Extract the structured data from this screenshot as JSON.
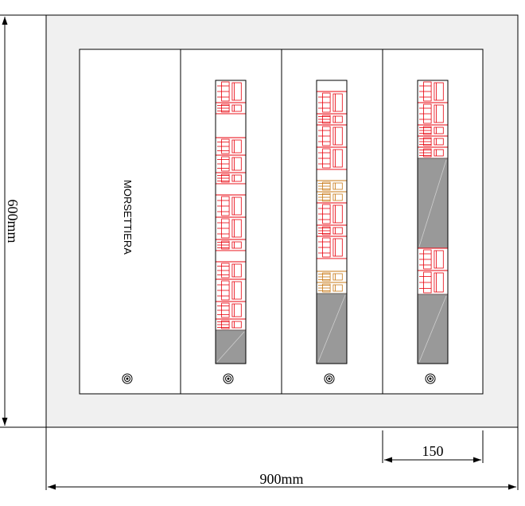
{
  "drawing": {
    "height_dimension": "600mm",
    "width_dimension": "900mm",
    "column_width_dimension": "150",
    "terminal_label": "MORSETTIERA"
  },
  "colors": {
    "enclosure": "#f0f0f0",
    "panel": "#ffffff",
    "line": "#000000",
    "device_red": "#e8000b",
    "device_orange": "#c87814",
    "blank_gray": "#999999"
  }
}
